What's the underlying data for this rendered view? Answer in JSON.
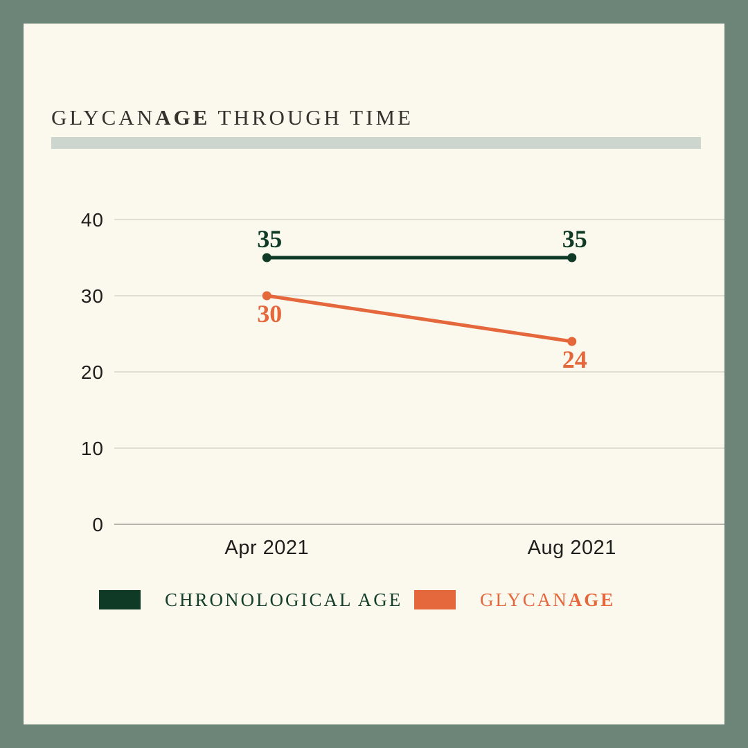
{
  "title": {
    "part1": "GLYCAN",
    "part2": "AGE",
    "part3": " THROUGH TIME"
  },
  "legend": [
    {
      "part1": "CHRONOLOGICAL AGE",
      "part2": "",
      "color": "#14402b",
      "swatch": "#0e3a26"
    },
    {
      "part1": "GLYCAN",
      "part2": "AGE",
      "color": "#e5673c",
      "swatch": "#e5673c"
    }
  ],
  "chart_data": {
    "type": "line",
    "categories": [
      "Apr 2021",
      "Aug 2021"
    ],
    "series": [
      {
        "name": "Chronological Age",
        "values": [
          35,
          35
        ],
        "color": "#0e3a26",
        "label_position": "above"
      },
      {
        "name": "GlycanAge",
        "values": [
          30,
          24
        ],
        "color": "#e5673c",
        "label_position": "below"
      }
    ],
    "yticks": [
      0,
      10,
      20,
      30,
      40
    ],
    "ylim": [
      0,
      40
    ],
    "grid": true,
    "legend_position": "bottom",
    "title": "GLYCANAGE THROUGH TIME",
    "xlabel": "",
    "ylabel": ""
  },
  "colors": {
    "page_bg": "#6d8578",
    "card_bg": "#fbf9ed",
    "divider": "#ccd6cf",
    "title": "#33322d",
    "gridline": "#e0ded5",
    "zero_line": "#b5b3ab",
    "axis_text": "#1e1e1c",
    "green": "#0e3a26",
    "orange": "#e5673c"
  }
}
